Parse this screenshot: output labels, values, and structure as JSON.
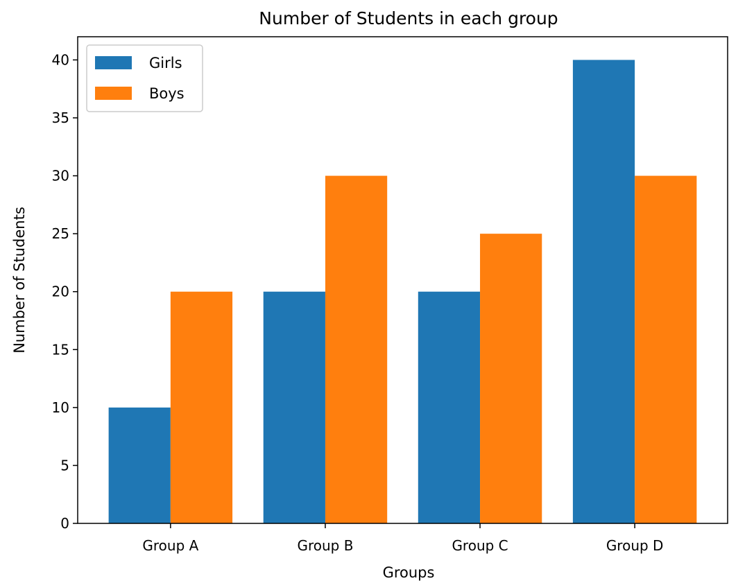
{
  "chart_data": {
    "type": "bar",
    "title": "Number of Students in each group",
    "xlabel": "Groups",
    "ylabel": "Number of Students",
    "categories": [
      "Group A",
      "Group B",
      "Group C",
      "Group D"
    ],
    "series": [
      {
        "name": "Girls",
        "values": [
          10,
          20,
          20,
          40
        ],
        "color": "#1f77b4"
      },
      {
        "name": "Boys",
        "values": [
          20,
          30,
          25,
          30
        ],
        "color": "#ff7f0e"
      }
    ],
    "ylim": [
      0,
      42
    ],
    "yticks": [
      "0",
      "5",
      "10",
      "15",
      "20",
      "25",
      "30",
      "35",
      "40"
    ],
    "grid": false,
    "legend_position": "top-left"
  }
}
